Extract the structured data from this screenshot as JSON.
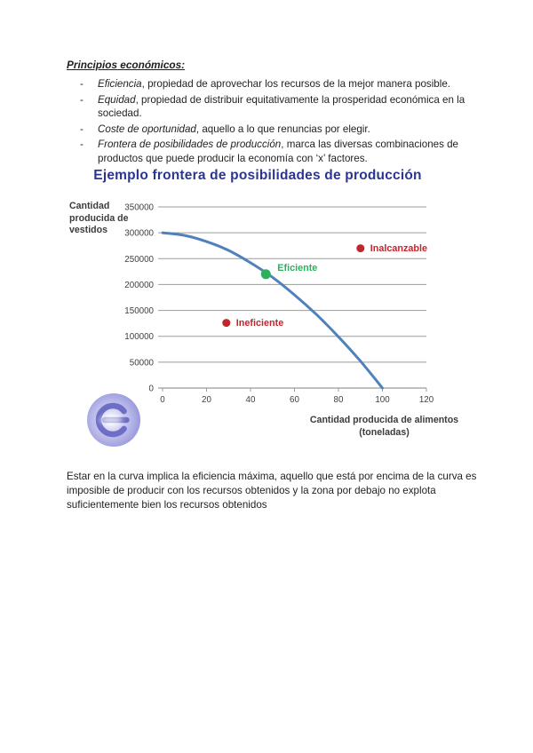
{
  "doc": {
    "heading": "Principios económicos:",
    "bullet_marker": "-",
    "bullets": [
      {
        "term": "Eficiencia",
        "rest": ", propiedad de aprovechar los recursos de la mejor manera posible."
      },
      {
        "term": "Equidad",
        "rest": ", propiedad de distribuir equitativamente la prosperidad económica en la sociedad."
      },
      {
        "term": "Coste de oportunidad",
        "rest": ", aquello a lo que renuncias por elegir."
      },
      {
        "term": "Frontera de posibilidades de producción",
        "rest": ", marca las diversas combinaciones de productos que puede producir la economía con ‘x’ factores."
      }
    ],
    "footer_paragraph": "Estar en la curva implica la eficiencia máxima, aquello que está por encima de la curva es imposible de producir con los recursos obtenidos y la zona por debajo no explota suficientemente bien los recursos obtenidos"
  },
  "chart_data": {
    "type": "line",
    "title": "Ejemplo frontera de posibilidades de producción",
    "title_color": "#2b3690",
    "xlabel": "Cantidad producida de alimentos (toneladas)",
    "xlabel_lines": [
      "Cantidad producida de alimentos",
      "(toneladas)"
    ],
    "ylabel": "Cantidad producida de vestidos",
    "ylabel_lines": [
      "Cantidad",
      "producida de",
      "vestidos"
    ],
    "xlim": [
      0,
      120
    ],
    "ylim": [
      0,
      350000
    ],
    "x_ticks": [
      0,
      20,
      40,
      60,
      80,
      100,
      120
    ],
    "y_ticks": [
      0,
      50000,
      100000,
      150000,
      200000,
      250000,
      300000,
      350000
    ],
    "grid": true,
    "legend": "none",
    "gridline_color": "#9b9b9b",
    "tick_label_color": "#3f3f3f",
    "series": [
      {
        "name": "Frontera de posibilidades de producción",
        "color": "#4f81bd",
        "points": [
          [
            0,
            300000
          ],
          [
            10,
            295000
          ],
          [
            20,
            283000
          ],
          [
            30,
            266000
          ],
          [
            40,
            242000
          ],
          [
            50,
            214000
          ],
          [
            60,
            180000
          ],
          [
            70,
            142000
          ],
          [
            80,
            99000
          ],
          [
            90,
            52000
          ],
          [
            100,
            0
          ]
        ]
      }
    ],
    "point_markers": [
      {
        "label": "Eficiente",
        "x": 47,
        "y": 220000,
        "color": "#2eaf5b"
      },
      {
        "label": "Inalcanzable",
        "x": 90,
        "y": 270000,
        "color": "#c0262c"
      },
      {
        "label": "Ineficiente",
        "x": 29,
        "y": 126000,
        "color": "#c0262c"
      }
    ]
  },
  "logo": {
    "icon": "power-button-watermark",
    "color": "#9a9ade"
  }
}
